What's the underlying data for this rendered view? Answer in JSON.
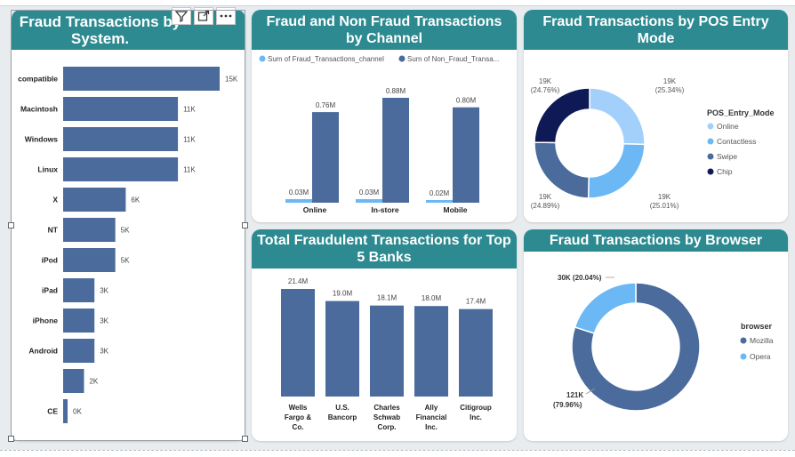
{
  "charts": {
    "os": {
      "title": "Fraud Transactions by System."
    },
    "channel": {
      "title": "Fraud and Non Fraud Transactions by Channel",
      "legend": [
        "Sum of Fraud_Transactions_channel",
        "Sum of Non_Fraud_Transa..."
      ]
    },
    "pos": {
      "title": "Fraud Transactions by POS Entry Mode",
      "legend_title": "POS_Entry_Mode"
    },
    "banks": {
      "title": "Total Fraudulent Transactions for Top 5 Banks"
    },
    "browser": {
      "title": "Fraud Transactions by Browser",
      "legend_title": "browser"
    }
  },
  "colors": {
    "accent": "#2c8a90",
    "bar": "#4a6b9b",
    "light_blue": "#6cb8f5",
    "pale_blue": "#a3cffb",
    "navy": "#0e1a55"
  },
  "chart_data": [
    {
      "type": "bar",
      "orientation": "horizontal",
      "title": "Fraud Transactions by System.",
      "categories": [
        "compatible",
        "Macintosh",
        "Windows",
        "Linux",
        "X",
        "NT",
        "iPod",
        "iPad",
        "iPhone",
        "Android",
        "",
        "CE"
      ],
      "values": [
        15000,
        11000,
        11000,
        11000,
        6000,
        5000,
        5000,
        3000,
        3000,
        3000,
        2000,
        0
      ],
      "labels": [
        "15K",
        "11K",
        "11K",
        "11K",
        "6K",
        "5K",
        "5K",
        "3K",
        "3K",
        "3K",
        "2K",
        "0K"
      ]
    },
    {
      "type": "bar",
      "title": "Fraud and Non Fraud Transactions by Channel",
      "categories": [
        "Online",
        "In-store",
        "Mobile"
      ],
      "series": [
        {
          "name": "Sum of Fraud_Transactions_channel",
          "values": [
            0.03,
            0.03,
            0.02
          ],
          "labels": [
            "0.03M",
            "0.03M",
            "0.02M"
          ]
        },
        {
          "name": "Sum of Non_Fraud_Transa...",
          "values": [
            0.76,
            0.88,
            0.8
          ],
          "labels": [
            "0.76M",
            "0.88M",
            "0.80M"
          ]
        }
      ]
    },
    {
      "type": "pie",
      "subtype": "donut",
      "title": "Fraud Transactions by POS Entry Mode",
      "categories": [
        "Online",
        "Contactless",
        "Swipe",
        "Chip"
      ],
      "values": [
        25.34,
        25.01,
        24.89,
        24.76
      ],
      "labels": [
        "19K\n(25.34%)",
        "19K\n(25.01%)",
        "19K\n(24.89%)",
        "19K\n(24.76%)"
      ]
    },
    {
      "type": "bar",
      "title": "Total Fraudulent Transactions for Top 5 Banks",
      "categories": [
        "Wells Fargo & Co.",
        "U.S. Bancorp",
        "Charles Schwab Corp.",
        "Ally Financial Inc.",
        "Citigroup Inc."
      ],
      "values": [
        21.4,
        19.0,
        18.1,
        18.0,
        17.4
      ],
      "labels": [
        "21.4M",
        "19.0M",
        "18.1M",
        "18.0M",
        "17.4M"
      ]
    },
    {
      "type": "pie",
      "subtype": "donut",
      "title": "Fraud Transactions by Browser",
      "categories": [
        "Mozilla",
        "Opera"
      ],
      "values": [
        79.96,
        20.04
      ],
      "labels": [
        "121K\n(79.96%)",
        "30K (20.04%)"
      ]
    }
  ]
}
